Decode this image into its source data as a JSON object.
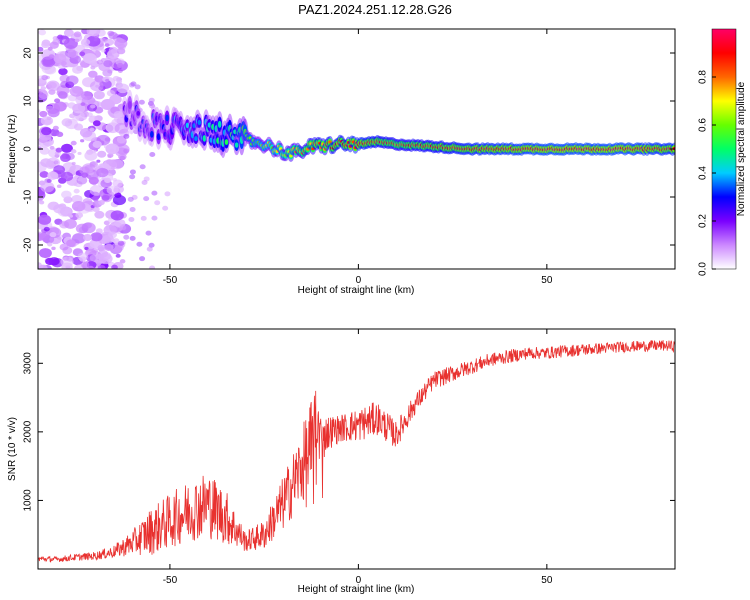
{
  "page_title": "PAZ1.2024.251.12.28.G26",
  "colors": {
    "snr_line": "#e8312f",
    "colorbar_stops": [
      "#ffffff",
      "#cc88ff",
      "#7a00ff",
      "#0000ff",
      "#00ccff",
      "#00ff66",
      "#66ff00",
      "#ffff00",
      "#ff6600",
      "#ff0000",
      "#ff0066"
    ]
  },
  "chart_data": [
    {
      "type": "heatmap",
      "title": "PAZ1.2024.251.12.28.G26",
      "xlabel": "Height of straight line (km)",
      "ylabel": "Frequency (Hz)",
      "xlim": [
        -85,
        84
      ],
      "ylim": [
        -25,
        25
      ],
      "x_ticks": [
        -50,
        0,
        50
      ],
      "y_ticks": [
        -20,
        -10,
        0,
        10,
        20
      ],
      "grid": false,
      "colorbar": {
        "label": "Normalized spectral amplitude",
        "range": [
          0.0,
          1.0
        ],
        "ticks": [
          0.0,
          0.2,
          0.4,
          0.6,
          0.8
        ]
      },
      "ridge": {
        "description_points_x": [
          -62,
          -55,
          -45,
          -35,
          -25,
          -18,
          -12,
          -5,
          0,
          5,
          10,
          20,
          30,
          50,
          70,
          84
        ],
        "frequency_hz": [
          8,
          5,
          4,
          3,
          1,
          -1,
          0.5,
          1,
          1,
          1.5,
          1,
          0.5,
          0,
          0,
          0,
          0
        ],
        "amplitude": [
          0.2,
          0.25,
          0.35,
          0.45,
          0.6,
          0.7,
          0.8,
          0.85,
          0.9,
          0.85,
          0.8,
          0.85,
          0.9,
          0.95,
          0.95,
          0.9
        ]
      }
    },
    {
      "type": "line",
      "xlabel": "Height of straight line (km)",
      "ylabel": "SNR (10 * v/v)",
      "xlim": [
        -85,
        84
      ],
      "ylim": [
        0,
        3500
      ],
      "x_ticks": [
        -50,
        0,
        50
      ],
      "y_ticks": [
        1000,
        2000,
        3000
      ],
      "grid": false,
      "series": [
        {
          "x": [
            -85,
            -80,
            -75,
            -70,
            -65,
            -60,
            -55,
            -50,
            -45,
            -40,
            -35,
            -30,
            -25,
            -20,
            -15,
            -12,
            -10,
            -5,
            0,
            5,
            10,
            15,
            20,
            25,
            30,
            35,
            40,
            45,
            50,
            55,
            60,
            65,
            70,
            75,
            80,
            84
          ],
          "values": [
            150,
            140,
            170,
            190,
            250,
            380,
            550,
            700,
            850,
            950,
            750,
            400,
            500,
            950,
            1500,
            1700,
            1950,
            2050,
            2100,
            2200,
            1950,
            2400,
            2750,
            2850,
            2950,
            3050,
            3100,
            3150,
            3150,
            3180,
            3200,
            3220,
            3240,
            3250,
            3260,
            3250
          ],
          "noise": [
            40,
            40,
            50,
            60,
            90,
            180,
            350,
            400,
            450,
            500,
            400,
            150,
            220,
            400,
            550,
            900,
            300,
            200,
            250,
            250,
            200,
            150,
            130,
            120,
            110,
            100,
            100,
            90,
            90,
            90,
            90,
            80,
            80,
            80,
            80,
            80
          ]
        }
      ]
    }
  ]
}
